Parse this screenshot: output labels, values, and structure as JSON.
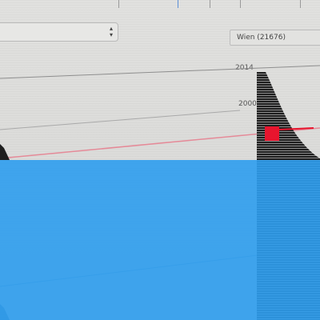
{
  "location_select": {
    "value": "Wien (21676)"
  },
  "left_select": {
    "value": ""
  },
  "chart": {
    "y_ticks": [
      "2014",
      "2000"
    ]
  },
  "colors": {
    "background": "#dcdcda",
    "chart_fill": "#222222",
    "highlight": "#e8152e",
    "overlay": "#2e9dee"
  }
}
